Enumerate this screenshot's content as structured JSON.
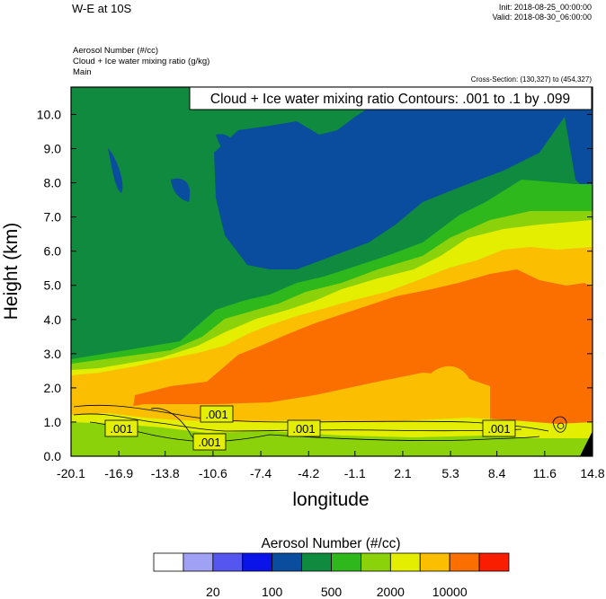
{
  "header": {
    "title": "W-E at 10S",
    "init": "Init: 2018-08-25_00:00:00",
    "valid": "Valid: 2018-08-30_06:00:00",
    "field1": "Aerosol Number   (#/cc)",
    "field2": "Cloud + Ice water mixing ratio   (g/kg)",
    "field3": "Main",
    "cross_section": "Cross-Section: (130,327) to (454,327)"
  },
  "chart_data": {
    "type": "heatmap",
    "title": "W-E at 10S",
    "xlabel": "longitude",
    "ylabel": "Height (km)",
    "x_ticks": [
      "-20.1",
      "-16.9",
      "-13.8",
      "-10.6",
      "-7.4",
      "-4.2",
      "-1.1",
      "2.1",
      "5.3",
      "8.4",
      "11.6",
      "14.8"
    ],
    "y_ticks": [
      "0.0",
      "1.0",
      "2.0",
      "3.0",
      "4.0",
      "5.0",
      "6.0",
      "7.0",
      "8.0",
      "9.0",
      "10.0"
    ],
    "xlim": [
      -20.1,
      14.8
    ],
    "ylim": [
      0,
      10.8
    ],
    "contour_annotation": "Cloud + Ice water mixing ratio Contours: .001 to .1 by .099",
    "contour_labels": [
      ".001",
      ".001",
      ".001",
      ".001",
      ".001"
    ],
    "colorbar": {
      "title": "Aerosol Number  (#/cc)",
      "colors": [
        "#ffffff",
        "#a0a0f5",
        "#5555f0",
        "#0a14e8",
        "#0a4c9e",
        "#0f8a3e",
        "#2fb81c",
        "#8cd20a",
        "#e3ee00",
        "#fbbe00",
        "#fb6e00",
        "#fa1e00"
      ],
      "tick_labels": [
        "20",
        "100",
        "500",
        "2000",
        "10000"
      ]
    }
  }
}
